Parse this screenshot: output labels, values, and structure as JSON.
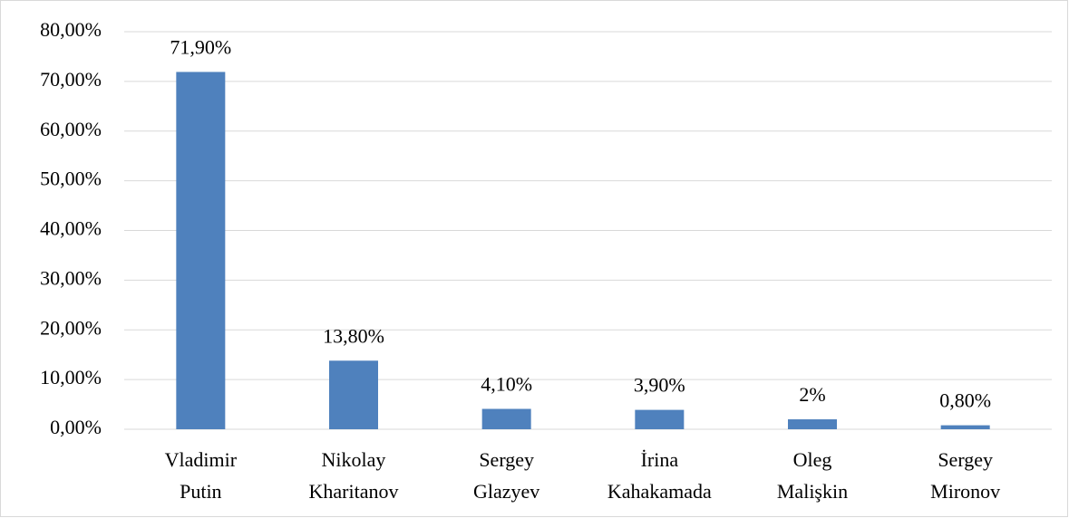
{
  "chart_data": {
    "type": "bar",
    "categories": [
      "Vladimir Putin",
      "Nikolay Kharitanov",
      "Sergey Glazyev",
      "İrina Kahakamada",
      "Oleg Malişkin",
      "Sergey Mironov"
    ],
    "values": [
      71.9,
      13.8,
      4.1,
      3.9,
      2,
      0.8
    ],
    "value_labels": [
      "71,90%",
      "13,80%",
      "4,10%",
      "3,90%",
      "2%",
      "0,80%"
    ],
    "color": "#4f81bd",
    "ylim": [
      0,
      80
    ],
    "yticks": [
      {
        "value": 0,
        "label": "0,00%"
      },
      {
        "value": 10,
        "label": "10,00%"
      },
      {
        "value": 20,
        "label": "20,00%"
      },
      {
        "value": 30,
        "label": "30,00%"
      },
      {
        "value": 40,
        "label": "40,00%"
      },
      {
        "value": 50,
        "label": "50,00%"
      },
      {
        "value": 60,
        "label": "60,00%"
      },
      {
        "value": 70,
        "label": "70,00%"
      },
      {
        "value": 80,
        "label": "80,00%"
      }
    ],
    "grid": true
  }
}
